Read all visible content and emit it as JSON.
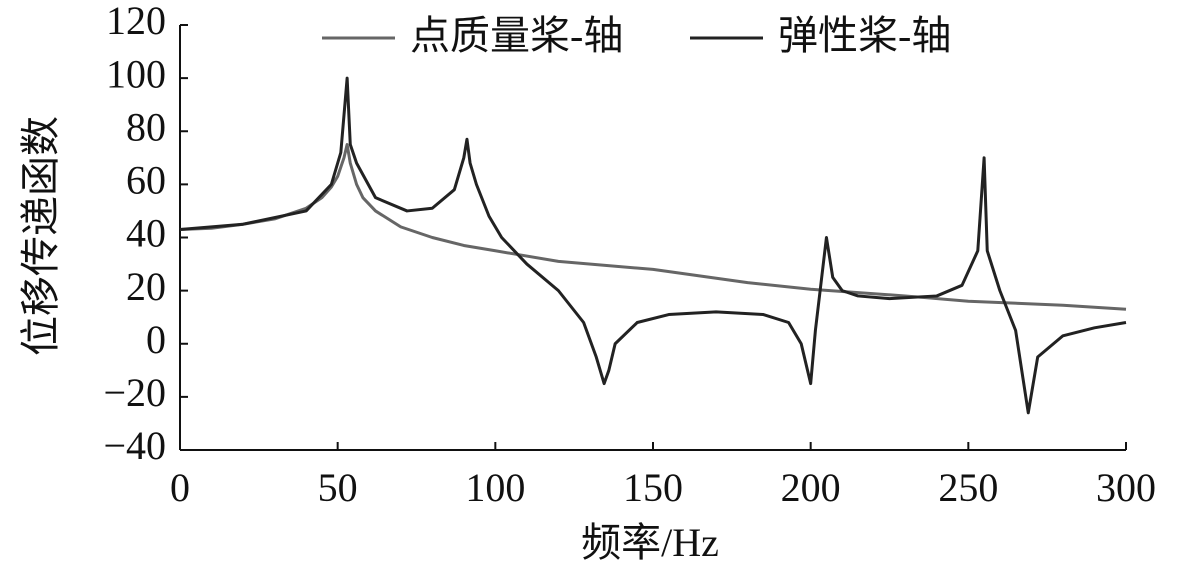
{
  "chart_data": {
    "type": "line",
    "xlabel": "频率/Hz",
    "ylabel": "位移传递函数",
    "xlim": [
      0,
      300
    ],
    "xticks": [
      0,
      50,
      100,
      150,
      200,
      250,
      300
    ],
    "ylim": [
      -40,
      120
    ],
    "yticks": [
      {
        "value": -40,
        "label": "−40"
      },
      {
        "value": -20,
        "label": "−20"
      },
      0,
      20,
      40,
      60,
      80,
      100,
      120
    ],
    "legend": "top",
    "series": [
      {
        "name": "点质量桨-轴",
        "color": "#666666",
        "x": [
          0,
          10,
          20,
          30,
          40,
          45,
          48,
          50,
          52,
          53,
          54,
          56,
          58,
          62,
          70,
          80,
          90,
          100,
          120,
          150,
          180,
          200,
          230,
          250,
          280,
          300
        ],
        "values": [
          43,
          43.5,
          45,
          47,
          51,
          55,
          59,
          63,
          70,
          75,
          68,
          60,
          55,
          50,
          44,
          40,
          37,
          35,
          31,
          28,
          23,
          20.5,
          18,
          16,
          14.5,
          13
        ]
      },
      {
        "name": "弹性桨-轴",
        "color": "#222222",
        "x": [
          0,
          20,
          40,
          48,
          51,
          53,
          54,
          56,
          62,
          72,
          80,
          87,
          90,
          91,
          92,
          94,
          98,
          102,
          110,
          120,
          128,
          132,
          134.5,
          136,
          138,
          145,
          155,
          170,
          185,
          193,
          197,
          200,
          201.5,
          203,
          205,
          207,
          210,
          215,
          225,
          240,
          248,
          253,
          255,
          256,
          260,
          265,
          269,
          272,
          280,
          290,
          300
        ],
        "values": [
          43,
          45,
          50,
          60,
          72,
          100,
          75,
          68,
          55,
          50,
          51,
          58,
          70,
          77,
          68,
          60,
          48,
          40,
          30,
          20,
          8,
          -5,
          -15,
          -10,
          0,
          8,
          11,
          12,
          11,
          8,
          0,
          -15,
          5,
          20,
          40,
          25,
          20,
          18,
          17,
          18,
          22,
          35,
          70,
          35,
          20,
          5,
          -26,
          -5,
          3,
          6,
          8
        ]
      }
    ]
  }
}
